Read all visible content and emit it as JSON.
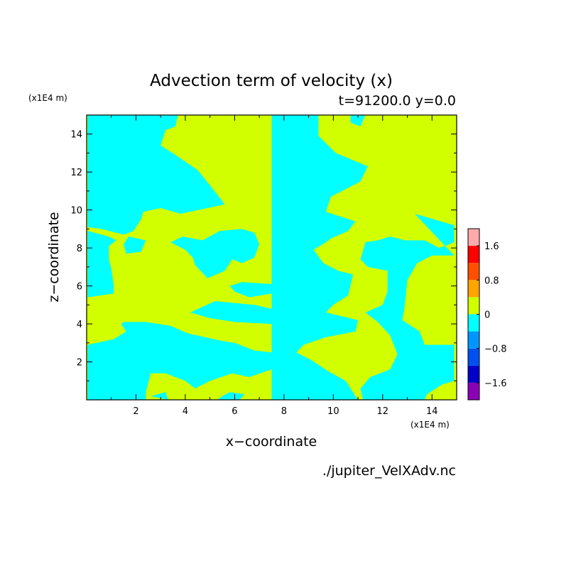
{
  "chart_data": {
    "type": "heatmap",
    "title": "Advection term of velocity (x)",
    "subtitle": "t=91200.0 y=0.0",
    "xlabel": "x−coordinate",
    "ylabel": "z−coordinate",
    "x_unit": "(x1E4 m)",
    "y_unit": "(x1E4 m)",
    "footer": "./jupiter_VelXAdv.nc",
    "xlim": [
      0,
      15
    ],
    "ylim": [
      0,
      15
    ],
    "x_ticks": [
      2,
      4,
      6,
      8,
      10,
      12,
      14
    ],
    "y_ticks": [
      2,
      4,
      6,
      8,
      10,
      12,
      14
    ],
    "x_tick_labels": [
      "2",
      "4",
      "6",
      "8",
      "10",
      "12",
      "14"
    ],
    "y_tick_labels": [
      "2",
      "4",
      "6",
      "8",
      "10",
      "12",
      "14"
    ],
    "colorbar": {
      "levels": [
        -2.0,
        -1.6,
        -1.2,
        -0.8,
        -0.4,
        0.0,
        0.4,
        0.8,
        1.2,
        1.6,
        2.0
      ],
      "colors": [
        "#8b00b5",
        "#0000c8",
        "#0050f0",
        "#0096ff",
        "#00ffff",
        "#d2ff00",
        "#ffa500",
        "#ff5000",
        "#ff0000",
        "#ffaaaa"
      ],
      "tick_values": [
        -1.6,
        -0.8,
        0,
        0.8,
        1.6
      ],
      "tick_labels": [
        "−1.6",
        "−0.8",
        "0",
        "0.8",
        "1.6"
      ]
    },
    "background_value_color": "#d2ff00",
    "negative_region_color": "#00ffff",
    "negative_regions_left": [
      [
        [
          0.04,
          15
        ],
        [
          3.7,
          15
        ],
        [
          3.6,
          14.4
        ],
        [
          3.2,
          14.2
        ],
        [
          3.0,
          13.4
        ],
        [
          3.6,
          12.9
        ],
        [
          4.5,
          12.1
        ],
        [
          5.0,
          11.3
        ],
        [
          5.6,
          10.3
        ],
        [
          4.9,
          10.1
        ],
        [
          3.8,
          9.8
        ],
        [
          3.0,
          10.1
        ],
        [
          2.3,
          9.9
        ],
        [
          2.2,
          9.5
        ],
        [
          1.9,
          8.9
        ],
        [
          1.5,
          8.7
        ],
        [
          0.6,
          9.0
        ],
        [
          0.04,
          9.1
        ]
      ],
      [
        [
          0.04,
          8.9
        ],
        [
          0.9,
          8.6
        ],
        [
          1.2,
          8.4
        ],
        [
          0.9,
          8.1
        ],
        [
          0.9,
          7.4
        ],
        [
          1.0,
          6.9
        ],
        [
          1.1,
          6.0
        ],
        [
          1.1,
          5.6
        ],
        [
          0.04,
          5.4
        ]
      ],
      [
        [
          0.04,
          2.9
        ],
        [
          1.1,
          3.2
        ],
        [
          1.6,
          3.6
        ],
        [
          1.4,
          4.0
        ],
        [
          1.5,
          4.1
        ],
        [
          2.4,
          4.1
        ],
        [
          3.4,
          3.9
        ],
        [
          4.1,
          3.5
        ],
        [
          5.5,
          3.1
        ],
        [
          6.0,
          3.0
        ],
        [
          6.8,
          2.6
        ],
        [
          7.5,
          2.5
        ],
        [
          7.5,
          1.6
        ],
        [
          6.6,
          1.2
        ],
        [
          5.9,
          1.4
        ],
        [
          5.0,
          1.0
        ],
        [
          4.4,
          0.6
        ],
        [
          4.0,
          1.0
        ],
        [
          3.2,
          1.4
        ],
        [
          2.6,
          1.4
        ],
        [
          2.4,
          0.4
        ],
        [
          2.4,
          0.0
        ],
        [
          0.04,
          0.0
        ]
      ],
      [
        [
          2.6,
          0.2
        ],
        [
          3.2,
          0.4
        ],
        [
          3.3,
          0.0
        ]
      ],
      [
        [
          5.3,
          0.0
        ],
        [
          6.2,
          0.0
        ],
        [
          6.4,
          0.3
        ],
        [
          5.8,
          0.4
        ],
        [
          5.5,
          0.2
        ]
      ],
      [
        [
          3.4,
          8.3
        ],
        [
          3.9,
          8.6
        ],
        [
          4.7,
          8.4
        ],
        [
          5.4,
          8.9
        ],
        [
          6.3,
          9.0
        ],
        [
          6.8,
          8.8
        ],
        [
          7.0,
          8.2
        ],
        [
          6.8,
          7.5
        ],
        [
          6.3,
          7.2
        ],
        [
          5.9,
          7.4
        ],
        [
          5.6,
          6.8
        ],
        [
          4.9,
          6.4
        ],
        [
          4.4,
          7.1
        ],
        [
          4.3,
          7.5
        ],
        [
          4.0,
          7.9
        ]
      ],
      [
        [
          5.8,
          6.0
        ],
        [
          6.3,
          6.2
        ],
        [
          7.5,
          6.1
        ],
        [
          7.5,
          5.6
        ],
        [
          6.6,
          5.4
        ],
        [
          6.0,
          5.7
        ]
      ],
      [
        [
          1.7,
          8.6
        ],
        [
          2.4,
          8.4
        ],
        [
          2.2,
          7.8
        ],
        [
          1.6,
          7.7
        ],
        [
          1.5,
          8.2
        ]
      ],
      [
        [
          4.2,
          4.6
        ],
        [
          5.2,
          5.2
        ],
        [
          6.8,
          5.0
        ],
        [
          7.5,
          4.8
        ],
        [
          7.5,
          4.0
        ],
        [
          6.0,
          4.1
        ],
        [
          5.0,
          4.3
        ]
      ]
    ],
    "negative_regions_center": [
      [
        [
          7.5,
          0.0
        ],
        [
          7.5,
          15.0
        ],
        [
          9.4,
          15.0
        ],
        [
          9.4,
          13.9
        ],
        [
          10.1,
          13.0
        ],
        [
          11.4,
          12.3
        ],
        [
          11.1,
          11.5
        ],
        [
          9.9,
          10.7
        ],
        [
          9.7,
          9.9
        ],
        [
          10.9,
          9.4
        ],
        [
          10.6,
          8.9
        ],
        [
          9.9,
          8.5
        ],
        [
          9.7,
          8.3
        ],
        [
          9.2,
          7.9
        ],
        [
          9.6,
          7.2
        ],
        [
          10.2,
          6.8
        ],
        [
          10.8,
          6.6
        ],
        [
          10.6,
          5.5
        ],
        [
          10.0,
          5.0
        ],
        [
          9.7,
          4.6
        ],
        [
          11.0,
          4.2
        ],
        [
          10.9,
          3.6
        ],
        [
          9.7,
          3.3
        ],
        [
          8.8,
          2.9
        ],
        [
          8.5,
          2.5
        ],
        [
          9.1,
          2.1
        ],
        [
          9.8,
          1.5
        ],
        [
          10.5,
          1.0
        ],
        [
          11.0,
          0.0
        ]
      ],
      [
        [
          13.3,
          9.8
        ],
        [
          14.9,
          9.2
        ],
        [
          14.9,
          8.3
        ],
        [
          14.3,
          8.0
        ],
        [
          13.7,
          8.4
        ],
        [
          12.9,
          8.4
        ],
        [
          12.3,
          8.6
        ],
        [
          11.8,
          8.4
        ],
        [
          11.3,
          8.3
        ],
        [
          11.1,
          7.4
        ],
        [
          11.4,
          7.0
        ],
        [
          12.2,
          6.8
        ],
        [
          12.2,
          5.7
        ],
        [
          12.0,
          5.0
        ],
        [
          11.3,
          4.6
        ],
        [
          11.8,
          4.1
        ],
        [
          12.3,
          3.4
        ],
        [
          12.6,
          2.4
        ],
        [
          12.3,
          1.6
        ],
        [
          11.5,
          1.2
        ],
        [
          11.1,
          0.6
        ],
        [
          11.2,
          0.0
        ],
        [
          13.7,
          0.0
        ],
        [
          13.8,
          0.3
        ],
        [
          14.4,
          0.8
        ],
        [
          14.9,
          1.0
        ],
        [
          14.9,
          2.9
        ],
        [
          13.7,
          2.9
        ],
        [
          13.5,
          3.6
        ],
        [
          12.8,
          4.2
        ],
        [
          12.9,
          5.0
        ],
        [
          13.0,
          6.3
        ],
        [
          13.4,
          7.2
        ],
        [
          14.0,
          7.6
        ],
        [
          14.9,
          7.6
        ]
      ],
      [
        [
          10.7,
          15.0
        ],
        [
          11.3,
          15.0
        ],
        [
          11.1,
          14.4
        ],
        [
          10.7,
          14.6
        ]
      ]
    ]
  }
}
